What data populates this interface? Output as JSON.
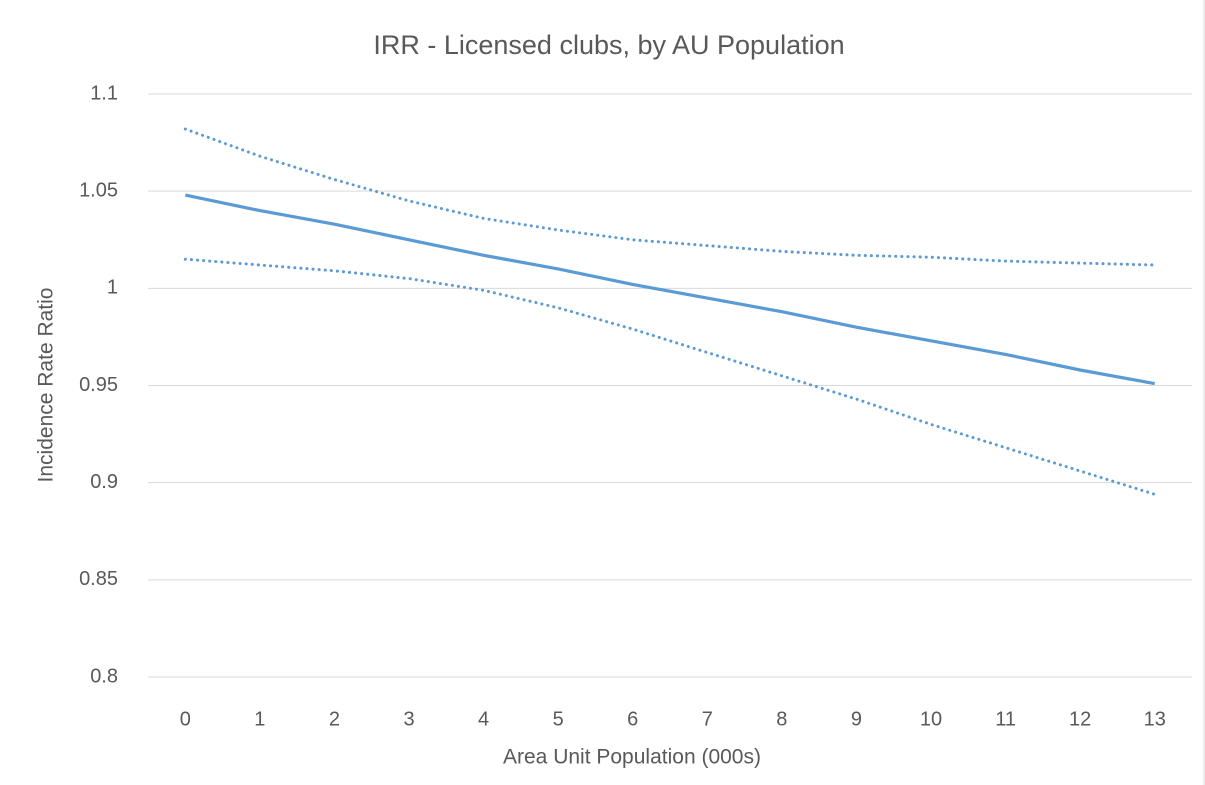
{
  "chart_data": {
    "type": "line",
    "title": "IRR - Licensed clubs, by AU Population",
    "x_label": "Area Unit Population (000s)",
    "y_label": "Incidence Rate Ratio",
    "categories": [
      "0",
      "1",
      "2",
      "3",
      "4",
      "5",
      "6",
      "7",
      "8",
      "9",
      "10",
      "11",
      "12",
      "13"
    ],
    "series": [
      {
        "color": "#5b9bd5",
        "dashed": false,
        "values": [
          1.048,
          1.04,
          1.033,
          1.025,
          1.017,
          1.01,
          1.002,
          0.995,
          0.988,
          0.98,
          0.973,
          0.966,
          0.958,
          0.951
        ]
      },
      {
        "color": "#5b9bd5",
        "dashed": true,
        "values": [
          1.082,
          1.068,
          1.056,
          1.045,
          1.036,
          1.03,
          1.025,
          1.022,
          1.019,
          1.017,
          1.016,
          1.014,
          1.013,
          1.012
        ]
      },
      {
        "color": "#5b9bd5",
        "dashed": true,
        "values": [
          1.015,
          1.012,
          1.009,
          1.005,
          0.999,
          0.99,
          0.979,
          0.967,
          0.955,
          0.943,
          0.93,
          0.918,
          0.906,
          0.894
        ]
      }
    ],
    "ylim": [
      0.8,
      1.1
    ],
    "yticks": [
      0.8,
      0.85,
      0.9,
      0.95,
      1,
      1.05,
      1.1
    ],
    "grid": true
  }
}
